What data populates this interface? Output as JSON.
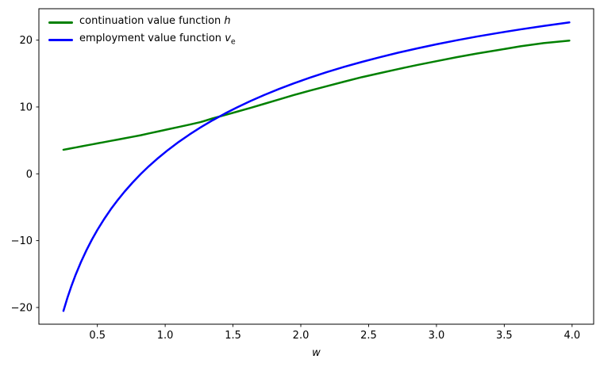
{
  "chart_data": {
    "type": "line",
    "title": "",
    "xlabel": "w",
    "ylabel": "",
    "grid": false,
    "legend_position": "upper left",
    "xlim": [
      0.069,
      4.159
    ],
    "ylim": [
      -22.5,
      24.7
    ],
    "xticks": {
      "values": [
        0.5,
        1.0,
        1.5,
        2.0,
        2.5,
        3.0,
        3.5,
        4.0
      ],
      "labels": [
        "0.5",
        "1.0",
        "1.5",
        "2.0",
        "2.5",
        "3.0",
        "3.5",
        "4.0"
      ]
    },
    "yticks": {
      "values": [
        -20,
        -10,
        0,
        10,
        20
      ],
      "labels": [
        "−20",
        "−10",
        "0",
        "10",
        "20"
      ]
    },
    "x": [
      0.25,
      0.28,
      0.31,
      0.34,
      0.38,
      0.42,
      0.46,
      0.5,
      0.55,
      0.6,
      0.65,
      0.7,
      0.76,
      0.82,
      0.88,
      0.95,
      1.02,
      1.1,
      1.18,
      1.26,
      1.35,
      1.44,
      1.53,
      1.63,
      1.73,
      1.84,
      1.95,
      2.07,
      2.19,
      2.32,
      2.45,
      2.58,
      2.72,
      2.86,
      3.0,
      3.15,
      3.3,
      3.46,
      3.62,
      3.79,
      3.98
    ],
    "series": [
      {
        "name": "continuation value function h",
        "color": "#008000",
        "values": [
          3.6,
          3.71,
          3.83,
          3.94,
          4.09,
          4.25,
          4.4,
          4.55,
          4.74,
          4.93,
          5.12,
          5.31,
          5.54,
          5.77,
          6.04,
          6.35,
          6.66,
          7.01,
          7.36,
          7.73,
          8.29,
          8.79,
          9.3,
          9.87,
          10.47,
          11.13,
          11.79,
          12.46,
          13.1,
          13.79,
          14.46,
          15.05,
          15.68,
          16.29,
          16.85,
          17.45,
          18.0,
          18.53,
          19.08,
          19.56,
          19.93
        ]
      },
      {
        "name": "employment value function v_e",
        "color": "#0000ff",
        "values": [
          -20.51,
          -18.51,
          -16.72,
          -15.1,
          -13.16,
          -11.42,
          -9.84,
          -8.4,
          -6.77,
          -5.28,
          -3.93,
          -2.68,
          -1.3,
          -0.03,
          1.14,
          2.39,
          3.55,
          4.77,
          5.89,
          6.93,
          8.01,
          9.01,
          9.94,
          10.9,
          11.79,
          12.7,
          13.55,
          14.4,
          15.2,
          16.0,
          16.74,
          17.43,
          18.13,
          18.77,
          19.38,
          19.98,
          20.54,
          21.09,
          21.61,
          22.12,
          22.65
        ]
      }
    ]
  },
  "legend": {
    "items": [
      {
        "text": "continuation value function ",
        "math": "h",
        "sub": ""
      },
      {
        "text": "employment value function ",
        "math": "v",
        "sub": "e"
      }
    ]
  },
  "axes": {
    "xlabel": "w"
  },
  "colors": {
    "line_h": "#008000",
    "line_ve": "#0000ff",
    "spine": "#000000",
    "tick_text": "#000000",
    "background": "#ffffff"
  }
}
